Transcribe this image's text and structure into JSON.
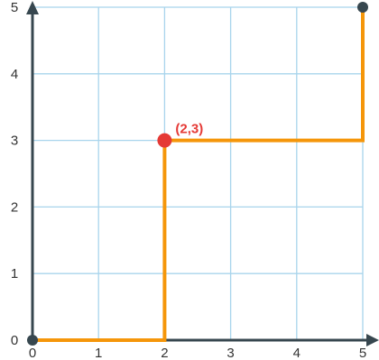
{
  "chart_data": {
    "type": "line",
    "title": "",
    "xlabel": "",
    "ylabel": "",
    "xlim": [
      0,
      5
    ],
    "ylim": [
      0,
      5
    ],
    "grid": true,
    "x_ticks": [
      "0",
      "1",
      "2",
      "3",
      "4",
      "5"
    ],
    "y_ticks": [
      "0",
      "1",
      "2",
      "3",
      "4",
      "5"
    ],
    "series": [
      {
        "points": [
          [
            0,
            0
          ],
          [
            2,
            0
          ],
          [
            2,
            3
          ],
          [
            5,
            3
          ],
          [
            5,
            5
          ]
        ],
        "color": "#f5960a"
      }
    ],
    "markers": [
      {
        "x": 0,
        "y": 0,
        "color": "#37474f"
      },
      {
        "x": 5,
        "y": 5,
        "color": "#37474f"
      },
      {
        "x": 2,
        "y": 3,
        "color": "#e53935"
      }
    ],
    "annotation": {
      "text": "(2,3)",
      "x": 2,
      "y": 3,
      "color": "#e53935"
    },
    "colors": {
      "grid": "#a8d4ec",
      "axis": "#37474f"
    }
  }
}
